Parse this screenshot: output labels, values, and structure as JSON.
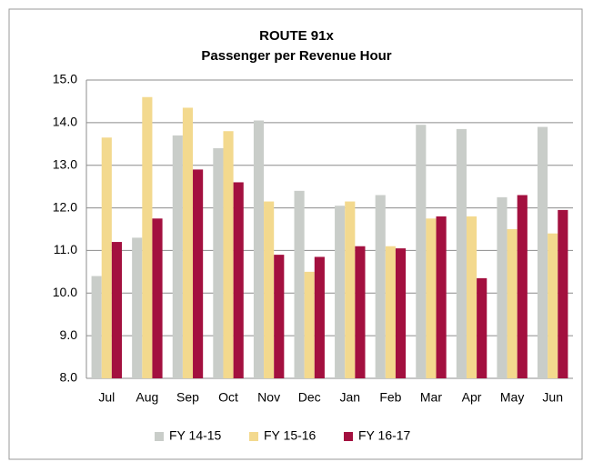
{
  "chart_data": {
    "type": "bar",
    "title": "ROUTE 91x",
    "subtitle": "Passenger per Revenue Hour",
    "categories": [
      "Jul",
      "Aug",
      "Sep",
      "Oct",
      "Nov",
      "Dec",
      "Jan",
      "Feb",
      "Mar",
      "Apr",
      "May",
      "Jun"
    ],
    "series": [
      {
        "name": "FY 14-15",
        "color": "#c9cdc9",
        "values": [
          10.4,
          11.3,
          13.7,
          13.4,
          14.05,
          12.4,
          12.05,
          12.3,
          13.95,
          13.85,
          12.25,
          13.9
        ]
      },
      {
        "name": "FY 15-16",
        "color": "#f3d98e",
        "values": [
          13.65,
          14.6,
          14.35,
          13.8,
          12.15,
          10.5,
          12.15,
          11.1,
          11.75,
          11.8,
          11.5,
          11.4
        ]
      },
      {
        "name": "FY 16-17",
        "color": "#a3103f",
        "values": [
          11.2,
          11.75,
          12.9,
          12.6,
          10.9,
          10.85,
          11.1,
          11.05,
          11.8,
          10.35,
          12.3,
          11.95
        ]
      }
    ],
    "ylim": [
      8,
      15
    ],
    "yticks": [
      {
        "value": 8,
        "label": "8.0"
      },
      {
        "value": 9,
        "label": "9.0"
      },
      {
        "value": 10,
        "label": "10.0"
      },
      {
        "value": 11,
        "label": "11.0"
      },
      {
        "value": 12,
        "label": "12.0"
      },
      {
        "value": 13,
        "label": "13.0"
      },
      {
        "value": 14,
        "label": "14.0"
      },
      {
        "value": 15,
        "label": "15.0"
      }
    ],
    "grid": true,
    "legend": "bottom"
  }
}
